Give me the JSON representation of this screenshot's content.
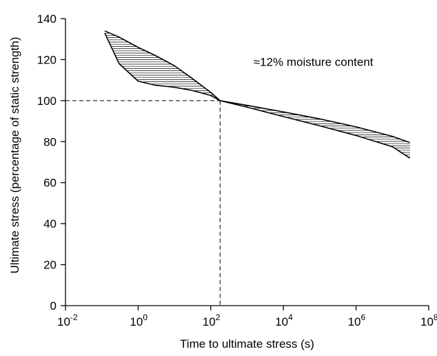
{
  "chart_data": {
    "type": "area",
    "xlabel": "Time to ultimate stress (s)",
    "ylabel": "Ultimate stress (percentage of static strength)",
    "x_scale": "log10",
    "xlim": [
      0.01,
      100000000
    ],
    "ylim": [
      0,
      140
    ],
    "x_ticks": [
      {
        "base": "10",
        "exp": "-2",
        "value": 0.01
      },
      {
        "base": "10",
        "exp": "0",
        "value": 1
      },
      {
        "base": "10",
        "exp": "2",
        "value": 100
      },
      {
        "base": "10",
        "exp": "4",
        "value": 10000
      },
      {
        "base": "10",
        "exp": "6",
        "value": 1000000
      },
      {
        "base": "10",
        "exp": "8",
        "value": 100000000
      }
    ],
    "y_ticks": [
      "0",
      "20",
      "40",
      "60",
      "80",
      "100",
      "120",
      "140"
    ],
    "y_tick_values": [
      0,
      20,
      40,
      60,
      80,
      100,
      120,
      140
    ],
    "band_upper": {
      "x": [
        0.12,
        0.3,
        1,
        3,
        10,
        30,
        100,
        180,
        1000,
        10000,
        100000,
        1000000,
        10000000,
        30000000
      ],
      "y": [
        134,
        131,
        126,
        122,
        117,
        111,
        104,
        100,
        97.7,
        94.5,
        91.1,
        87.2,
        82.6,
        79.6
      ]
    },
    "band_lower": {
      "x": [
        0.12,
        0.3,
        1,
        3,
        10,
        30,
        100,
        180,
        1000,
        10000,
        100000,
        1000000,
        10000000,
        30000000
      ],
      "y": [
        133,
        118,
        109.5,
        107.5,
        106.5,
        105,
        102.5,
        100,
        96.8,
        92.2,
        87.7,
        83,
        77.5,
        72
      ]
    },
    "reference_point": {
      "x": 180,
      "y": 100
    },
    "annotations": [
      {
        "text": "≈12% moisture content",
        "x": 1500,
        "y": 117
      }
    ],
    "grid": false,
    "legend": "none"
  }
}
